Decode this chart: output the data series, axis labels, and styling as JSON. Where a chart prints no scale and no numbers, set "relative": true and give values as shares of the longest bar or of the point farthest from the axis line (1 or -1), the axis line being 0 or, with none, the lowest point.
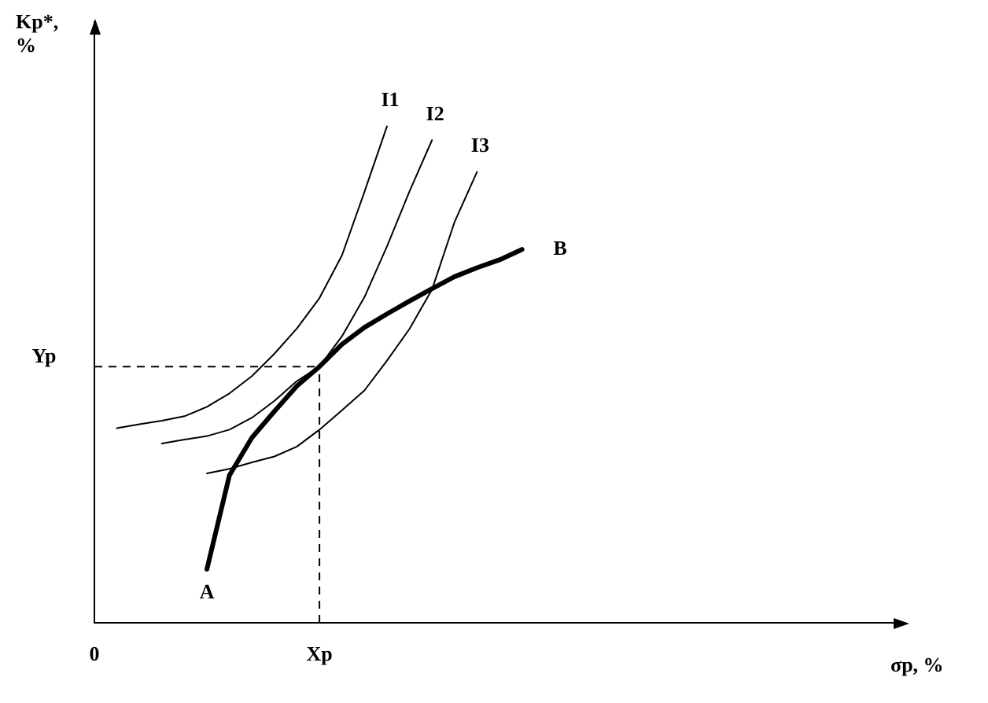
{
  "chart_data": {
    "type": "line",
    "relative": true,
    "xlabel": "σp, %",
    "ylabel": "Kp*, %",
    "marker": "none",
    "line_style": "solid",
    "categories": [
      "0",
      null,
      null,
      null,
      null,
      null,
      null,
      null,
      null,
      null,
      "Xp",
      null,
      null,
      null,
      null,
      null,
      null,
      null,
      null,
      null,
      null,
      null,
      null,
      null,
      null,
      null,
      null,
      null,
      null,
      null,
      null,
      null,
      null,
      null,
      null,
      null,
      null
    ],
    "series": [
      {
        "color": "#000000",
        "values": [
          null,
          null,
          null,
          null,
          null,
          0.108,
          0.297,
          0.373,
          0.426,
          0.477,
          0.516,
          0.561,
          0.595,
          0.622,
          0.648,
          0.673,
          0.697,
          0.715,
          0.731,
          0.752,
          null,
          null,
          null,
          null,
          null,
          null,
          null,
          null,
          null,
          null,
          null,
          null,
          null,
          null,
          null,
          null,
          null
        ]
      },
      {
        "name": "I1",
        "color": "#000000",
        "values": [
          null,
          0.392,
          0.4,
          0.407,
          0.416,
          0.435,
          0.462,
          0.497,
          0.542,
          0.593,
          0.654,
          0.74,
          0.868,
          1.0,
          null,
          null,
          null,
          null,
          null,
          null,
          null,
          null,
          null,
          null,
          null,
          null,
          null,
          null,
          null,
          null,
          null,
          null,
          null,
          null,
          null,
          null,
          null
        ]
      },
      {
        "name": "I2",
        "color": "#000000",
        "values": [
          null,
          null,
          null,
          0.361,
          0.369,
          0.376,
          0.389,
          0.413,
          0.447,
          0.487,
          0.516,
          0.577,
          0.656,
          0.758,
          0.869,
          0.972,
          null,
          null,
          null,
          null,
          null,
          null,
          null,
          null,
          null,
          null,
          null,
          null,
          null,
          null,
          null,
          null,
          null,
          null,
          null,
          null,
          null
        ]
      },
      {
        "name": "I3",
        "color": "#000000",
        "values": [
          null,
          null,
          null,
          null,
          null,
          0.301,
          0.31,
          0.323,
          0.335,
          0.355,
          0.389,
          0.428,
          0.468,
          0.528,
          0.592,
          0.671,
          0.807,
          0.908,
          null,
          null,
          null,
          null,
          null,
          null,
          null,
          null,
          null,
          null,
          null,
          null,
          null,
          null,
          null,
          null,
          null,
          null,
          null
        ]
      }
    ],
    "ref_lines": [
      {
        "axis": "y",
        "value": 0.516,
        "label": "Yp",
        "line_style": "dashed",
        "color": "#000000"
      },
      {
        "axis": "x",
        "value": "Xp",
        "line_style": "dashed",
        "color": "#000000"
      }
    ],
    "annotations": [
      "A",
      "B"
    ]
  }
}
